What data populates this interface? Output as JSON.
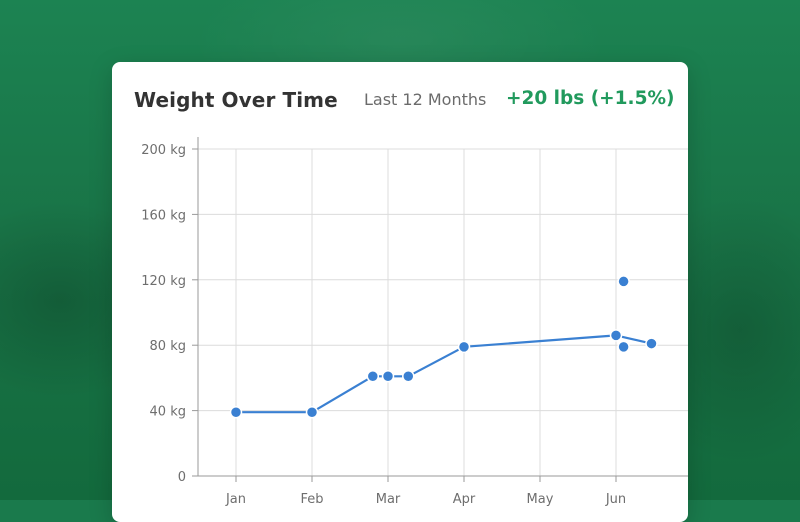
{
  "card": {
    "title": "Weight Over Time",
    "range_label": "Last 12 Months",
    "change_label": "+20 lbs (+1.5%)"
  },
  "colors": {
    "background": "#1a7a4c",
    "accent_green": "#219a5d",
    "line": "#3a80d2"
  },
  "chart_data": {
    "type": "line",
    "title": "Weight Over Time",
    "x_ticks": [
      "Jan",
      "Feb",
      "Mar",
      "Apr",
      "May",
      "Jun"
    ],
    "y_ticks": [
      "0",
      "40 kg",
      "80 kg",
      "120 kg",
      "160 kg",
      "200 kg"
    ],
    "ylim": [
      0,
      200
    ],
    "grid": true,
    "series": [
      {
        "points": [
          {
            "x": "Jan 1",
            "y": 39
          },
          {
            "x": "Feb 1",
            "y": 39
          },
          {
            "x": "Feb 25",
            "y": 61
          },
          {
            "x": "Mar 1",
            "y": 61
          },
          {
            "x": "Mar 9",
            "y": 61
          },
          {
            "x": "Apr 1",
            "y": 79
          },
          {
            "x": "Jun 1",
            "y": 86
          },
          {
            "x": "Jun 15",
            "y": 81
          }
        ]
      }
    ],
    "outliers": [
      {
        "x": "Jun 4",
        "y": 119
      },
      {
        "x": "Jun 4",
        "y": 79
      }
    ]
  }
}
